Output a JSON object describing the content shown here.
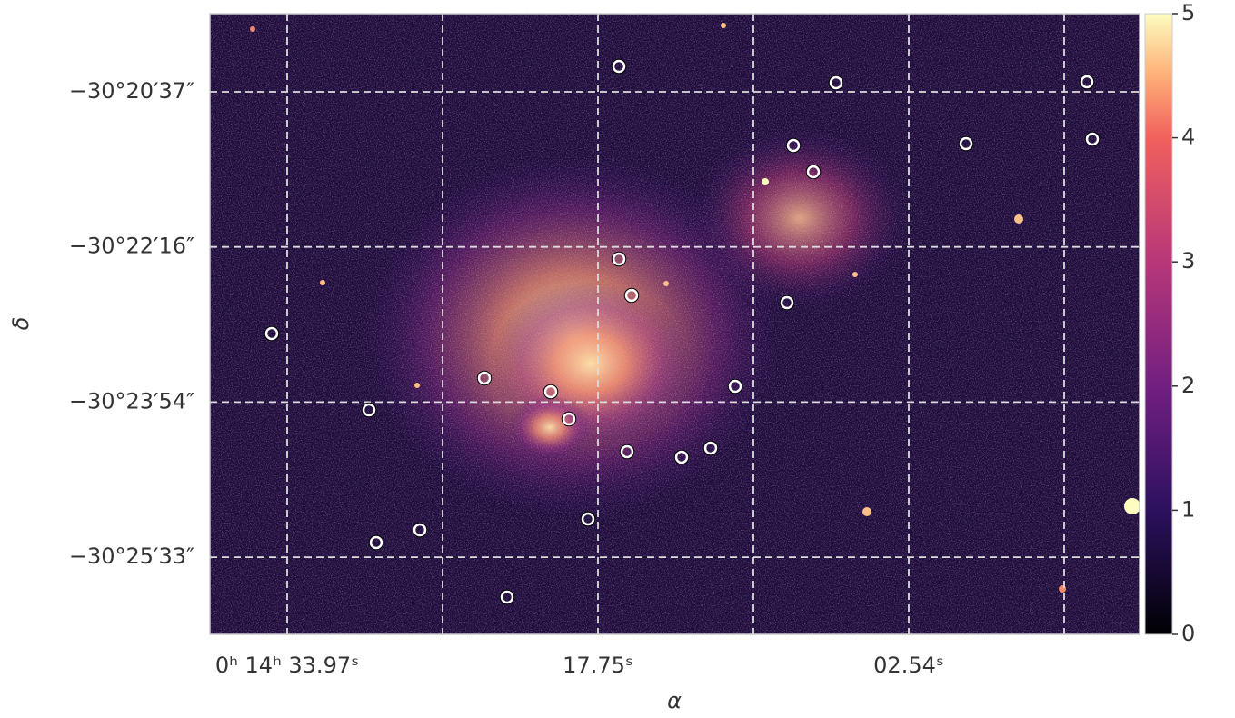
{
  "chart_data": {
    "type": "image",
    "xlabel": "α",
    "ylabel": "δ",
    "xticks": [
      "0ʰ 14ʰ 33.97ˢ",
      null,
      "17.75ˢ",
      null,
      "02.54ˢ",
      null
    ],
    "yticks": [
      "−30°20′37″",
      "−30°22′16″",
      "−30°23′54″",
      "−30°25′33″"
    ],
    "grid": true,
    "colorbar": {
      "lim": [
        0,
        5
      ],
      "ticks": [
        0,
        1,
        2,
        3,
        4,
        5
      ],
      "cmap": "magma"
    }
  }
}
